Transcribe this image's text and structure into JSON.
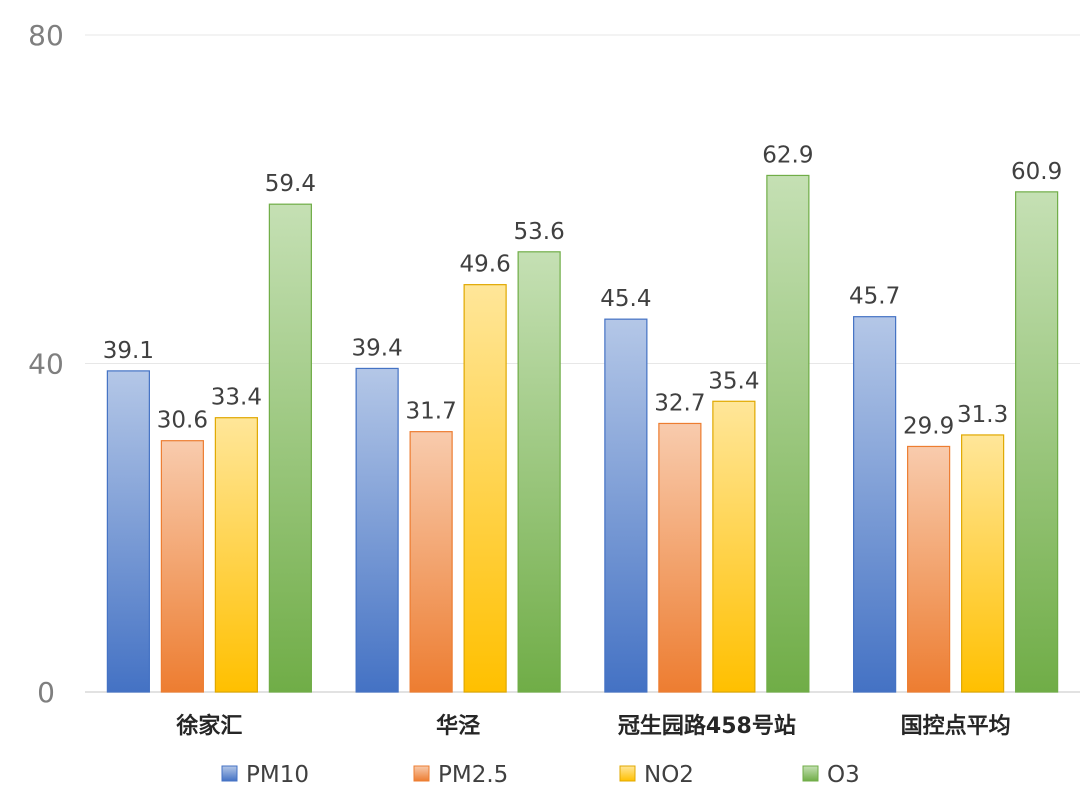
{
  "chart_data": {
    "type": "bar",
    "categories": [
      "徐家汇",
      "华泾",
      "冠生园路458号站",
      "国控点平均"
    ],
    "series": [
      {
        "name": "PM10",
        "values": [
          39.1,
          39.4,
          45.4,
          45.7
        ],
        "color_top": "#b4c7e7",
        "color_bottom": "#4472c4",
        "border": "#4472c4"
      },
      {
        "name": "PM2.5",
        "values": [
          30.6,
          31.7,
          32.7,
          29.9
        ],
        "color_top": "#f8cbad",
        "color_bottom": "#ed7d31",
        "border": "#ed7d31"
      },
      {
        "name": "NO2",
        "values": [
          33.4,
          49.6,
          35.4,
          31.3
        ],
        "color_top": "#ffe699",
        "color_bottom": "#ffc000",
        "border": "#e0a800"
      },
      {
        "name": "O3",
        "values": [
          59.4,
          53.6,
          62.9,
          60.9
        ],
        "color_top": "#c5e0b4",
        "color_bottom": "#70ad47",
        "border": "#70ad47"
      }
    ],
    "ylim": [
      0,
      80
    ],
    "yticks": [
      "0",
      "40",
      "80"
    ],
    "grid": true,
    "legend": "bottom",
    "data_labels": true
  }
}
